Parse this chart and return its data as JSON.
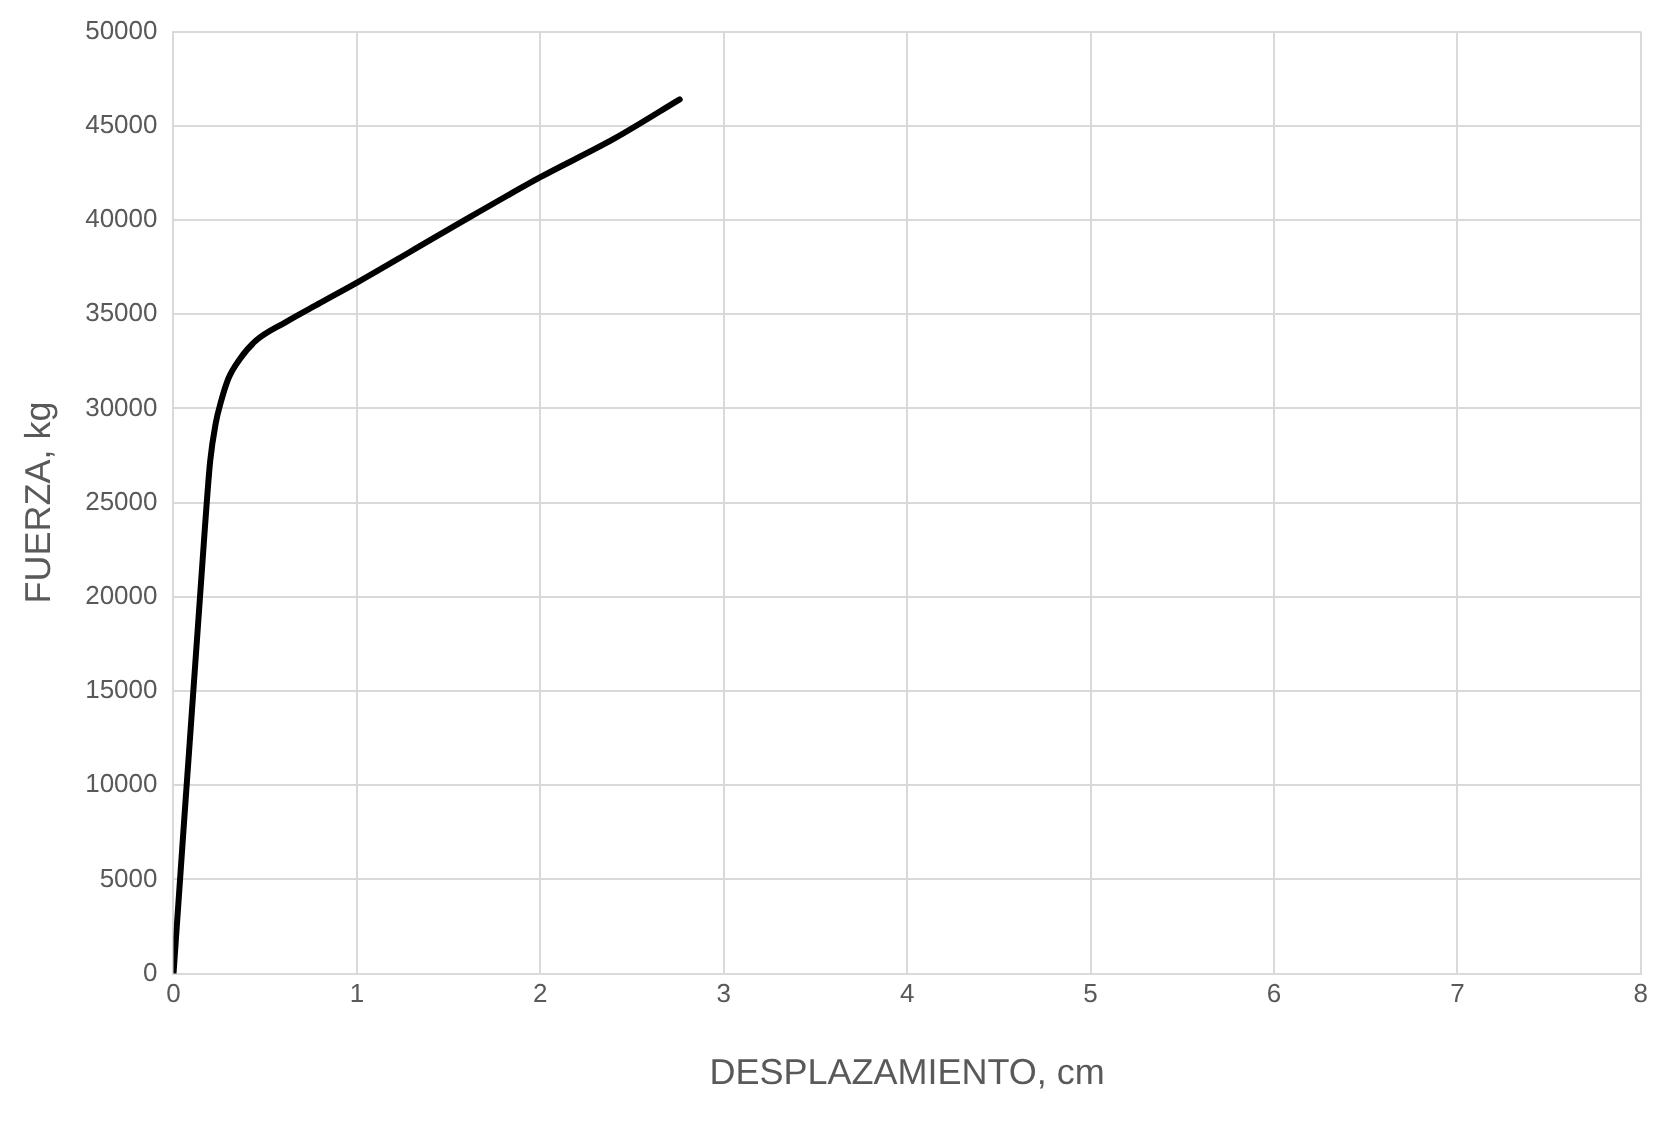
{
  "chart_data": {
    "type": "line",
    "xlabel": "DESPLAZAMIENTO, cm",
    "ylabel": "FUERZA, kg",
    "x": [
      0,
      0.17,
      0.2,
      0.23,
      0.26,
      0.3,
      0.36,
      0.45,
      0.61,
      0.8,
      1.01,
      1.5,
      2.0,
      2.4,
      2.76
    ],
    "series": [
      {
        "color": "#000000",
        "values": [
          0,
          23500,
          27200,
          29200,
          30400,
          31600,
          32600,
          33600,
          34570,
          35600,
          36730,
          39500,
          42270,
          44300,
          46400
        ]
      }
    ],
    "xlim": [
      0,
      8
    ],
    "xticks": [
      0,
      1,
      2,
      3,
      4,
      5,
      6,
      7,
      8
    ],
    "ylim": [
      0,
      50000
    ],
    "yticks": [
      0,
      5000,
      10000,
      15000,
      20000,
      25000,
      30000,
      35000,
      40000,
      45000,
      50000
    ],
    "grid": true,
    "legend": false,
    "marker": "none",
    "line_style": "solid"
  }
}
